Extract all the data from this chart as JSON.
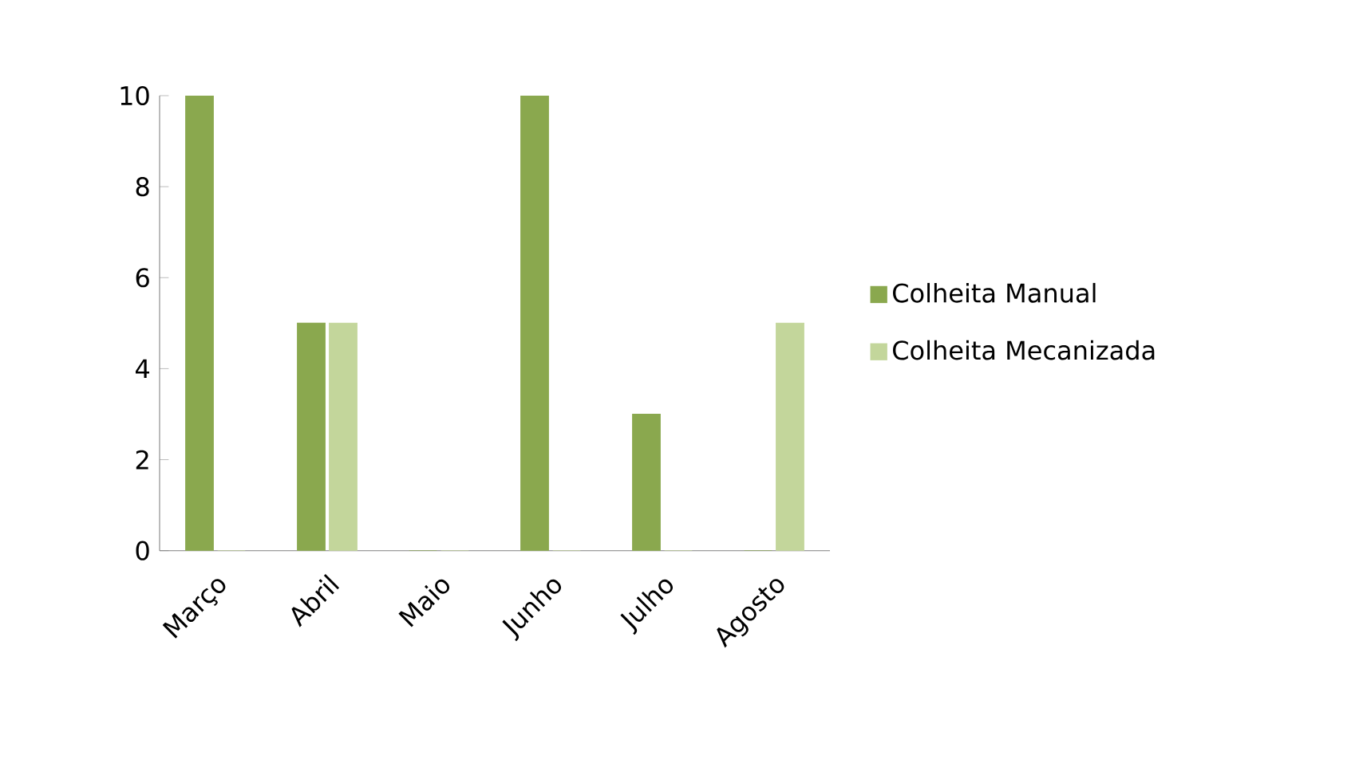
{
  "chart_data": {
    "type": "bar",
    "categories": [
      "Março",
      "Abril",
      "Maio",
      "Junho",
      "Julho",
      "Agosto"
    ],
    "series": [
      {
        "name": "Colheita Manual",
        "color": "#8aa84e",
        "values": [
          10,
          5,
          0,
          10,
          3,
          0
        ]
      },
      {
        "name": "Colheita Mecanizada",
        "color": "#c3d69b",
        "values": [
          0,
          5,
          0,
          0,
          0,
          5
        ]
      }
    ],
    "ylim": [
      0,
      10
    ],
    "yticks": [
      0,
      2,
      4,
      6,
      8,
      10
    ],
    "legend": "right"
  }
}
